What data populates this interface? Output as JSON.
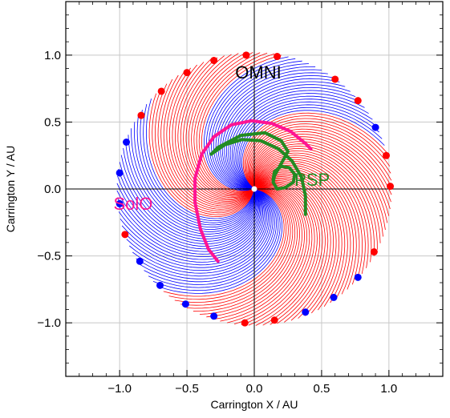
{
  "chart_data": {
    "type": "scatter",
    "title": "",
    "xlabel": "Carrington X / AU",
    "ylabel": "Carrington Y / AU",
    "xlim": [
      -1.4,
      1.4
    ],
    "ylim": [
      -1.4,
      1.4
    ],
    "xticks": [
      -1.0,
      -0.5,
      0.0,
      0.5,
      1.0
    ],
    "yticks": [
      -1.0,
      -0.5,
      0.0,
      0.5,
      1.0
    ],
    "xtick_labels": [
      "−1.0",
      "−0.5",
      "0.0",
      "0.5",
      "1.0"
    ],
    "ytick_labels": [
      "−1.0",
      "−0.5",
      "0.0",
      "0.5",
      "1.0"
    ],
    "grid": true,
    "colors": {
      "positive": "#ff0000",
      "negative": "#0000ff",
      "solo": "#ff1493",
      "psp": "#228b22"
    },
    "sector_field_lines": {
      "description_values": "Archimedean spiral field lines at 1 AU footpoints; polarity by color",
      "footpoint_angles_deg": [
        0,
        3,
        6,
        9,
        12,
        15,
        18,
        21,
        24,
        27,
        30,
        33,
        36,
        39,
        42,
        45,
        48,
        51,
        54,
        57,
        60,
        63,
        66,
        69,
        72,
        75,
        78,
        81,
        84,
        87,
        90,
        93,
        96,
        99,
        102,
        105,
        108,
        111,
        114,
        117,
        120,
        123,
        126,
        129,
        132,
        135,
        138,
        141,
        144,
        147,
        150,
        153,
        156,
        159,
        162,
        165,
        168,
        171,
        174,
        177,
        180,
        183,
        186,
        189,
        192,
        195,
        198,
        201,
        204,
        207,
        210,
        213,
        216,
        219,
        222,
        225,
        228,
        231,
        234,
        237,
        240,
        243,
        246,
        249,
        252,
        255,
        258,
        261,
        264,
        267,
        270,
        273,
        276,
        279,
        282,
        285,
        288,
        291,
        294,
        297,
        300,
        303,
        306,
        309,
        312,
        315,
        318,
        321,
        324,
        327,
        330,
        333,
        336,
        339,
        342,
        345,
        348,
        351,
        354,
        357
      ],
      "negative_sectors_deg": [
        [
          20,
          80
        ],
        [
          140,
          230
        ]
      ]
    },
    "omni_points": [
      {
        "x": -0.06,
        "y": 1.0,
        "polarity": "positive"
      },
      {
        "x": 0.17,
        "y": 0.99,
        "polarity": "positive"
      },
      {
        "x": -0.3,
        "y": 0.96,
        "polarity": "positive"
      },
      {
        "x": -0.5,
        "y": 0.87,
        "polarity": "positive"
      },
      {
        "x": -0.69,
        "y": 0.73,
        "polarity": "positive"
      },
      {
        "x": 0.6,
        "y": 0.82,
        "polarity": "positive"
      },
      {
        "x": 0.77,
        "y": 0.66,
        "polarity": "positive"
      },
      {
        "x": 0.9,
        "y": 0.46,
        "polarity": "negative"
      },
      {
        "x": -0.84,
        "y": 0.55,
        "polarity": "positive"
      },
      {
        "x": -0.95,
        "y": 0.35,
        "polarity": "negative"
      },
      {
        "x": 0.98,
        "y": 0.25,
        "polarity": "positive"
      },
      {
        "x": -1.0,
        "y": 0.12,
        "polarity": "negative"
      },
      {
        "x": 1.01,
        "y": 0.02,
        "polarity": "positive"
      },
      {
        "x": -1.0,
        "y": -0.11,
        "polarity": "negative"
      },
      {
        "x": -0.96,
        "y": -0.34,
        "polarity": "positive"
      },
      {
        "x": 0.89,
        "y": -0.47,
        "polarity": "positive"
      },
      {
        "x": -0.85,
        "y": -0.54,
        "polarity": "negative"
      },
      {
        "x": 0.77,
        "y": -0.66,
        "polarity": "negative"
      },
      {
        "x": -0.7,
        "y": -0.72,
        "polarity": "negative"
      },
      {
        "x": 0.59,
        "y": -0.81,
        "polarity": "negative"
      },
      {
        "x": -0.51,
        "y": -0.86,
        "polarity": "negative"
      },
      {
        "x": 0.38,
        "y": -0.92,
        "polarity": "negative"
      },
      {
        "x": -0.3,
        "y": -0.95,
        "polarity": "negative"
      },
      {
        "x": 0.15,
        "y": -0.98,
        "polarity": "positive"
      },
      {
        "x": -0.07,
        "y": -1.0,
        "polarity": "positive"
      }
    ],
    "solo_trajectory": {
      "label": "SolO",
      "points": [
        [
          -0.27,
          -0.54
        ],
        [
          -0.34,
          -0.45
        ],
        [
          -0.4,
          -0.3
        ],
        [
          -0.44,
          -0.1
        ],
        [
          -0.44,
          0.08
        ],
        [
          -0.39,
          0.26
        ],
        [
          -0.3,
          0.39
        ],
        [
          -0.17,
          0.48
        ],
        [
          -0.02,
          0.51
        ],
        [
          0.13,
          0.49
        ],
        [
          0.27,
          0.43
        ],
        [
          0.38,
          0.34
        ],
        [
          0.42,
          0.3
        ]
      ]
    },
    "psp_trajectory": {
      "label": "PSP",
      "points": [
        [
          0.38,
          -0.19
        ],
        [
          0.38,
          -0.05
        ],
        [
          0.35,
          0.09
        ],
        [
          0.28,
          0.21
        ],
        [
          0.18,
          0.3
        ],
        [
          0.05,
          0.36
        ],
        [
          -0.09,
          0.37
        ],
        [
          -0.22,
          0.33
        ],
        [
          -0.32,
          0.26
        ],
        [
          -0.27,
          0.31
        ],
        [
          -0.1,
          0.4
        ],
        [
          0.08,
          0.42
        ],
        [
          0.2,
          0.36
        ],
        [
          0.25,
          0.28
        ],
        [
          0.15,
          0.1
        ],
        [
          0.14,
          0.05
        ],
        [
          0.17,
          0.0
        ],
        [
          0.23,
          0.01
        ],
        [
          0.29,
          0.05
        ],
        [
          0.3,
          0.11
        ],
        [
          0.26,
          0.16
        ],
        [
          0.2,
          0.17
        ],
        [
          0.15,
          0.13
        ],
        [
          0.14,
          0.07
        ]
      ]
    },
    "annotations": [
      {
        "text": "OMNI",
        "x": 0.03,
        "y": 0.86,
        "color": "#000000"
      },
      {
        "text": "SolO",
        "x": -0.9,
        "y": -0.12,
        "color": "#ff1493"
      },
      {
        "text": "PSP",
        "x": 0.43,
        "y": 0.06,
        "color": "#228b22"
      }
    ]
  }
}
